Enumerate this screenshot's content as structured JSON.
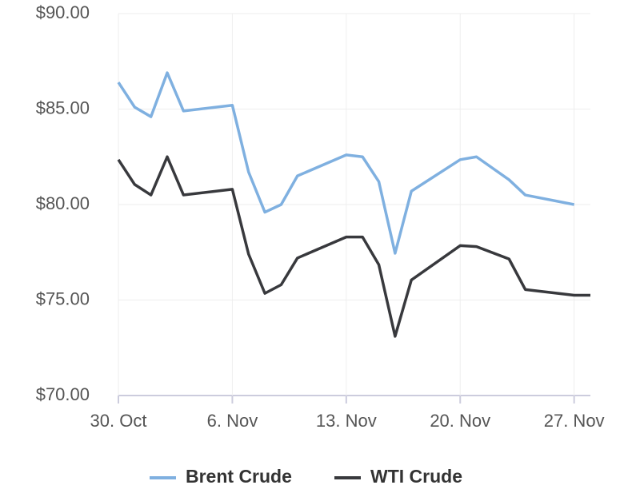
{
  "chart_data": {
    "type": "line",
    "x": [
      "30. Oct",
      "31. Oct",
      "1. Nov",
      "2. Nov",
      "3. Nov",
      "6. Nov",
      "7. Nov",
      "8. Nov",
      "9. Nov",
      "10. Nov",
      "13. Nov",
      "14. Nov",
      "15. Nov",
      "16. Nov",
      "17. Nov",
      "20. Nov",
      "21. Nov",
      "23. Nov",
      "24. Nov",
      "27. Nov",
      "28. Nov"
    ],
    "series": [
      {
        "name": "Brent Crude",
        "color": "#7fb0e0",
        "values": [
          86.4,
          85.1,
          84.6,
          86.9,
          84.9,
          85.2,
          81.7,
          79.6,
          80.0,
          81.5,
          82.6,
          82.5,
          81.2,
          77.45,
          80.7,
          82.35,
          82.5,
          81.3,
          80.5,
          80.0,
          null
        ]
      },
      {
        "name": "WTI Crude",
        "color": "#38393d",
        "values": [
          82.35,
          81.05,
          80.5,
          82.5,
          80.5,
          80.8,
          77.4,
          75.35,
          75.8,
          77.2,
          78.3,
          78.3,
          76.85,
          73.1,
          76.05,
          77.85,
          77.8,
          77.15,
          75.55,
          75.25,
          75.25
        ]
      }
    ],
    "xlim": [
      "30. Oct",
      "28. Nov"
    ],
    "xticks": [
      "30. Oct",
      "6. Nov",
      "13. Nov",
      "20. Nov",
      "27. Nov"
    ],
    "ylim": [
      70,
      90
    ],
    "yticks": [
      {
        "value": 70,
        "label": "$70.00"
      },
      {
        "value": 75,
        "label": "$75.00"
      },
      {
        "value": 80,
        "label": "$80.00"
      },
      {
        "value": 85,
        "label": "$85.00"
      },
      {
        "value": 90,
        "label": "$90.00"
      }
    ],
    "grid": true
  }
}
